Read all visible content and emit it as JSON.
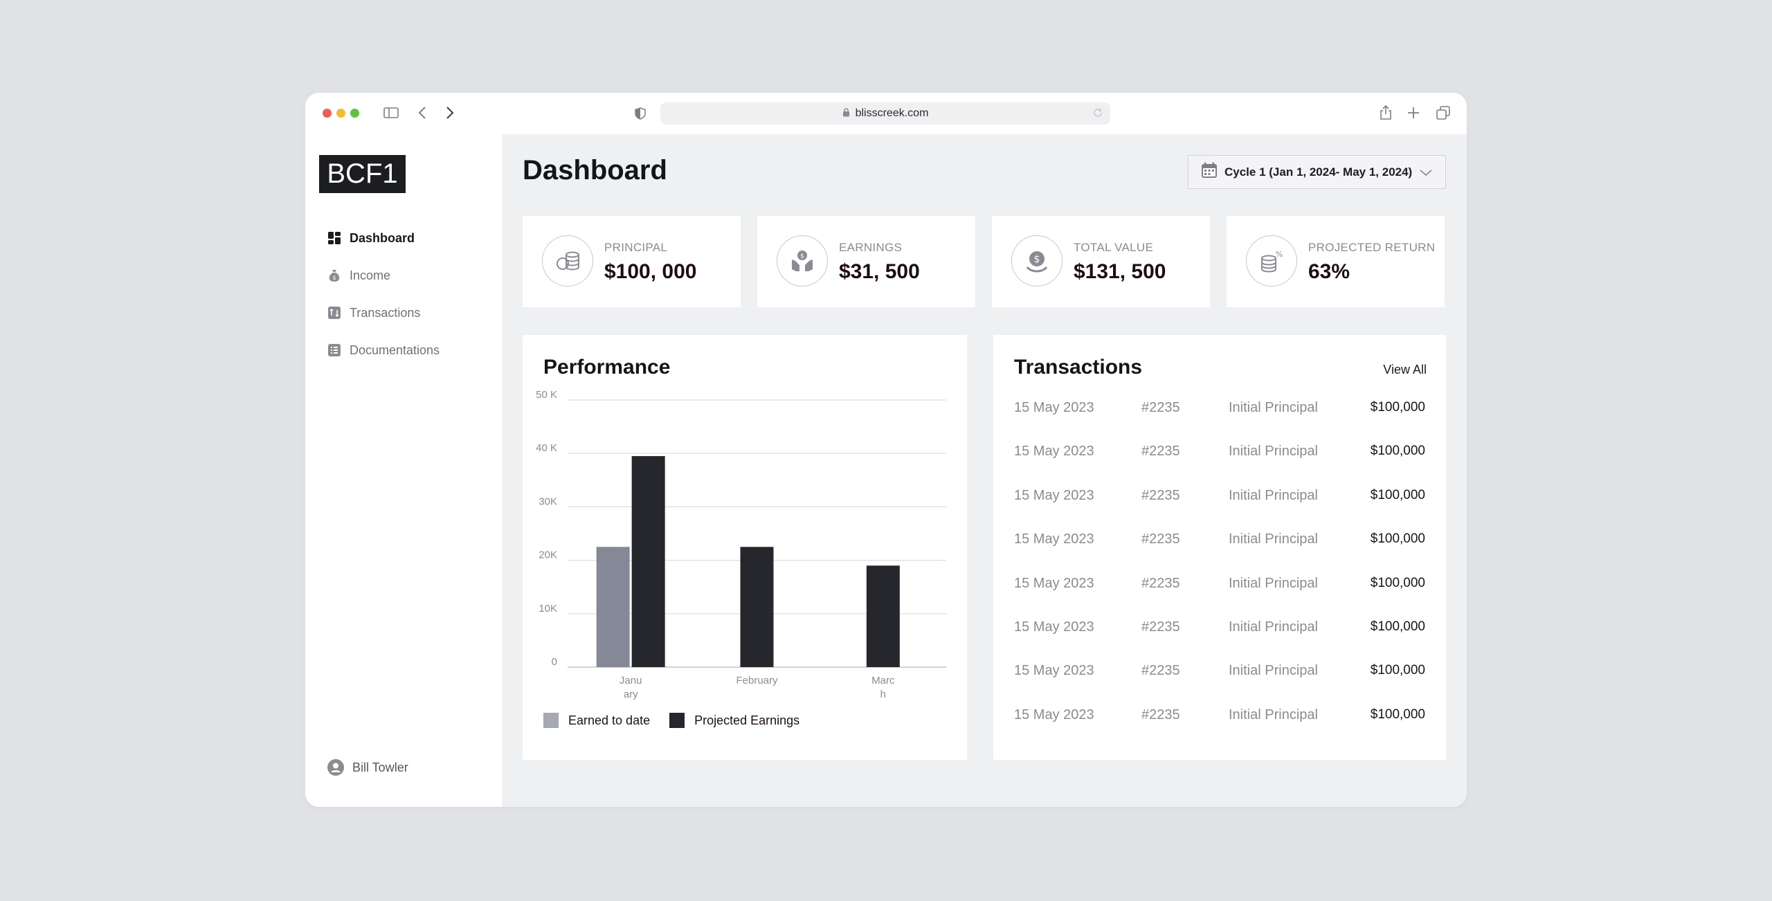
{
  "browser": {
    "url": "blisscreek.com"
  },
  "sidebar": {
    "logo": "BCF1",
    "items": [
      {
        "label": "Dashboard",
        "icon": "grid-icon",
        "active": true
      },
      {
        "label": "Income",
        "icon": "money-bag-icon",
        "active": false
      },
      {
        "label": "Transactions",
        "icon": "swap-icon",
        "active": false
      },
      {
        "label": "Documentations",
        "icon": "list-icon",
        "active": false
      }
    ],
    "user": "Bill Towler"
  },
  "header": {
    "title": "Dashboard",
    "cycle_label": "Cycle 1 (Jan 1, 2024- May 1, 2024)"
  },
  "stats": [
    {
      "label": "PRINCIPAL",
      "value": "$100, 000",
      "icon": "coins-icon"
    },
    {
      "label": "EARNINGS",
      "value": "$31, 500",
      "icon": "hand-money-icon"
    },
    {
      "label": "TOTAL VALUE",
      "value": "$131, 500",
      "icon": "dollar-coin-icon"
    },
    {
      "label": "PROJECTED RETURN",
      "value": "63%",
      "icon": "coins-percent-icon"
    }
  ],
  "performance": {
    "title": "Performance"
  },
  "transactions": {
    "title": "Transactions",
    "view_all": "View All",
    "rows": [
      {
        "date": "15 May 2023",
        "id": "#2235",
        "type": "Initial Principal",
        "amount": "$100,000"
      },
      {
        "date": "15 May 2023",
        "id": "#2235",
        "type": "Initial Principal",
        "amount": "$100,000"
      },
      {
        "date": "15 May 2023",
        "id": "#2235",
        "type": "Initial Principal",
        "amount": "$100,000"
      },
      {
        "date": "15 May 2023",
        "id": "#2235",
        "type": "Initial Principal",
        "amount": "$100,000"
      },
      {
        "date": "15 May 2023",
        "id": "#2235",
        "type": "Initial Principal",
        "amount": "$100,000"
      },
      {
        "date": "15 May 2023",
        "id": "#2235",
        "type": "Initial Principal",
        "amount": "$100,000"
      },
      {
        "date": "15 May 2023",
        "id": "#2235",
        "type": "Initial Principal",
        "amount": "$100,000"
      },
      {
        "date": "15 May 2023",
        "id": "#2235",
        "type": "Initial Principal",
        "amount": "$100,000"
      }
    ]
  },
  "chart_data": {
    "type": "bar",
    "categories": [
      "January",
      "February",
      "March"
    ],
    "category_tick_labels": [
      [
        "Janu",
        "ary"
      ],
      [
        "February"
      ],
      [
        "Marc",
        "h"
      ]
    ],
    "series": [
      {
        "name": "Earned to date",
        "values": [
          22500,
          null,
          null
        ],
        "color": "#858897"
      },
      {
        "name": "Projected Earnings",
        "values": [
          39500,
          22500,
          19000
        ],
        "color": "#26272d"
      }
    ],
    "y_ticks": [
      0,
      10000,
      20000,
      30000,
      40000,
      50000
    ],
    "y_tick_labels": [
      "0",
      "10K",
      "20K",
      "30K",
      "40 K",
      "50 K"
    ],
    "ylim": [
      0,
      50000
    ],
    "grid": true,
    "legend": "bottom-left"
  }
}
